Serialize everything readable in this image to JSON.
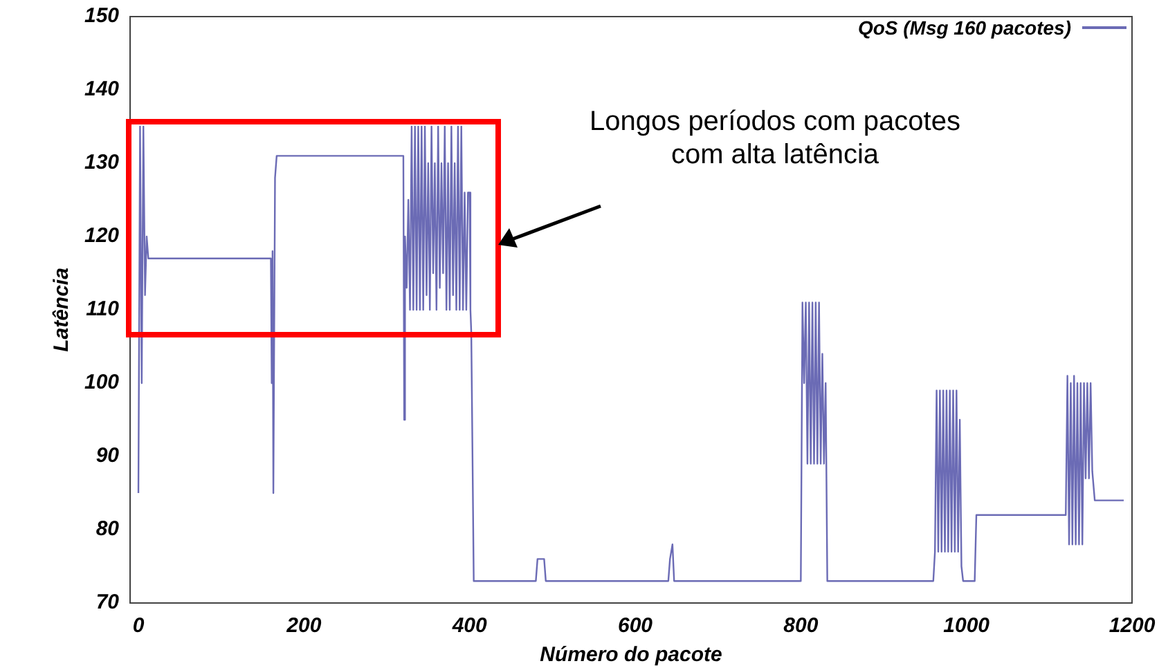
{
  "chart_data": {
    "type": "line",
    "xlabel": "Número do pacote",
    "ylabel": "Latência",
    "annotations": [
      "Longos períodos com pacotes com alta latência"
    ],
    "x": [
      0,
      2,
      4,
      6,
      8,
      10,
      12,
      160,
      161,
      162,
      163,
      165,
      167,
      320,
      321,
      322,
      324,
      326,
      328,
      330,
      332,
      334,
      336,
      338,
      340,
      342,
      344,
      346,
      348,
      350,
      352,
      354,
      356,
      358,
      360,
      362,
      364,
      366,
      368,
      370,
      372,
      374,
      376,
      378,
      380,
      382,
      384,
      386,
      388,
      390,
      392,
      394,
      396,
      398,
      400,
      401,
      402,
      405,
      480,
      482,
      490,
      492,
      640,
      642,
      645,
      647,
      800,
      802,
      804,
      806,
      808,
      810,
      812,
      814,
      816,
      818,
      820,
      822,
      824,
      826,
      828,
      830,
      832,
      960,
      962,
      964,
      966,
      968,
      970,
      972,
      974,
      976,
      978,
      980,
      982,
      984,
      986,
      988,
      990,
      992,
      994,
      996,
      1010,
      1012,
      1120,
      1122,
      1124,
      1126,
      1128,
      1130,
      1132,
      1134,
      1136,
      1138,
      1140,
      1142,
      1144,
      1146,
      1148,
      1150,
      1152,
      1155,
      1190
    ],
    "series": [
      {
        "name": "QoS (Msg 160 pacotes)",
        "color": "#6b6bb5",
        "values": [
          85,
          135,
          100,
          135,
          112,
          120,
          117,
          117,
          100,
          118,
          85,
          128,
          131,
          131,
          95,
          120,
          113,
          125,
          110,
          135,
          110,
          135,
          110,
          135,
          110,
          135,
          110,
          135,
          112,
          130,
          110,
          135,
          115,
          130,
          110,
          135,
          113,
          130,
          115,
          135,
          110,
          130,
          110,
          135,
          112,
          130,
          110,
          135,
          110,
          135,
          110,
          126,
          110,
          126,
          126,
          110,
          107,
          73,
          73,
          76,
          76,
          73,
          73,
          76,
          78,
          73,
          73,
          111,
          100,
          111,
          89,
          111,
          89,
          111,
          89,
          111,
          89,
          111,
          89,
          104,
          89,
          100,
          73,
          73,
          77,
          99,
          77,
          99,
          77,
          99,
          77,
          99,
          77,
          99,
          77,
          99,
          77,
          99,
          77,
          95,
          75,
          73,
          73,
          82,
          82,
          101,
          78,
          100,
          78,
          101,
          78,
          100,
          78,
          100,
          78,
          100,
          87,
          100,
          87,
          100,
          88,
          84,
          84
        ]
      }
    ],
    "xlim": [
      -10,
      1200
    ],
    "xticks": [
      0,
      200,
      400,
      600,
      800,
      {
        "value": 1000,
        "label": "1000"
      },
      {
        "value": 1200,
        "label": "1200"
      }
    ],
    "ylim": [
      70,
      150
    ],
    "yticks": [
      70,
      80,
      90,
      100,
      110,
      120,
      130,
      140,
      150
    ],
    "grid": false,
    "legend": "top right",
    "marker": "none",
    "line_style": "solid"
  }
}
